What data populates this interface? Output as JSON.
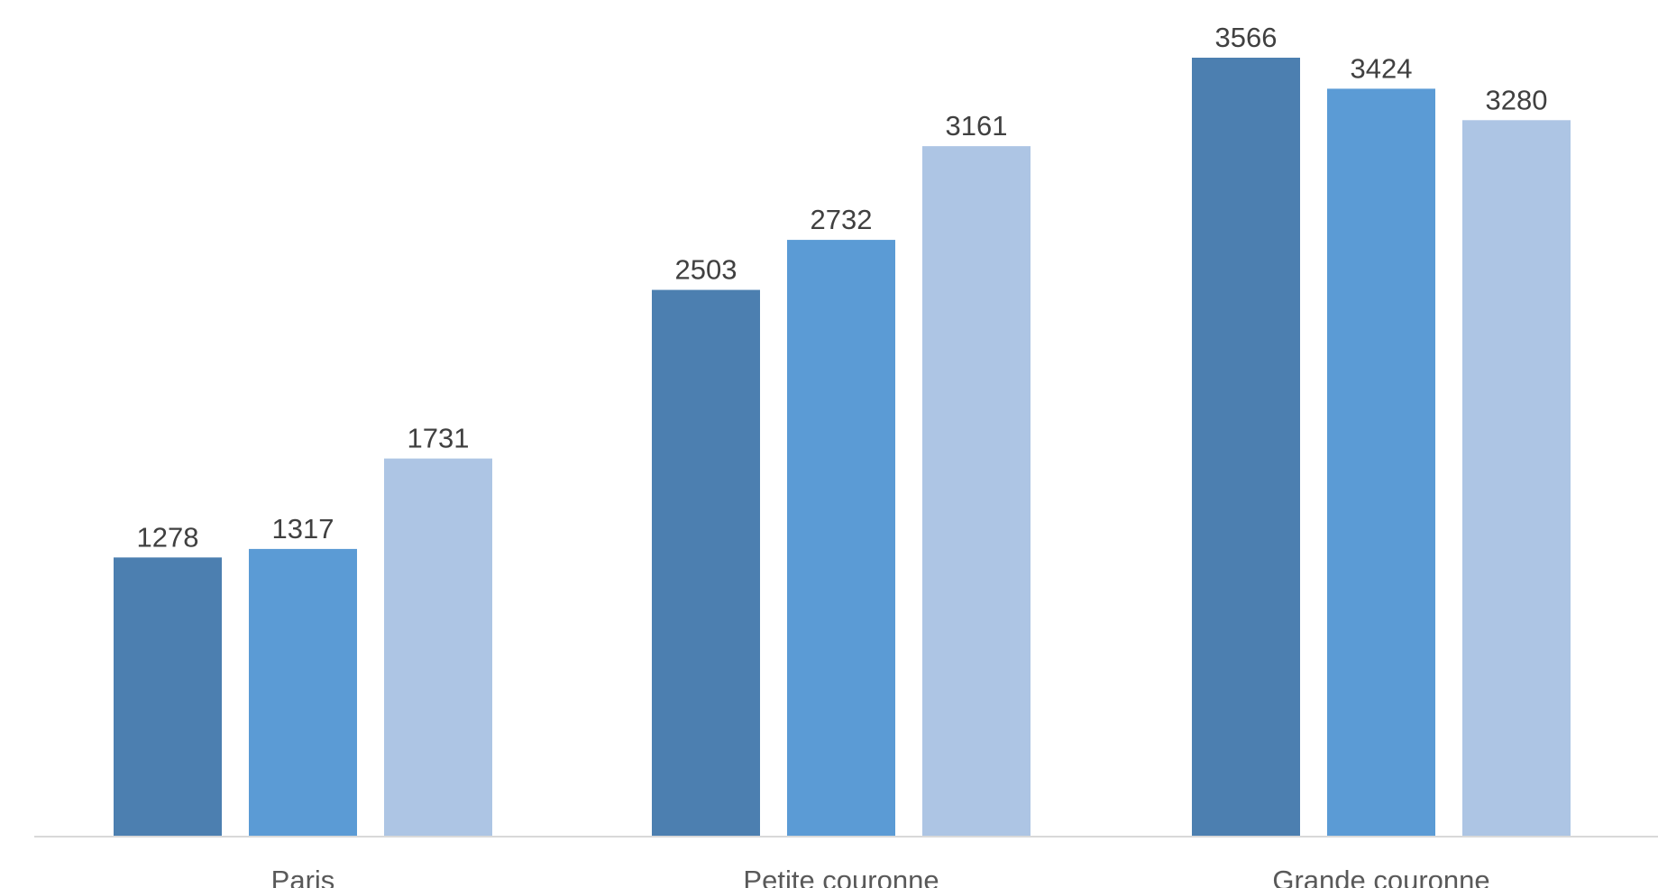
{
  "chart_data": {
    "type": "bar",
    "title": "",
    "xlabel": "",
    "ylabel": "",
    "categories": [
      "Paris",
      "Petite couronne",
      "Grande couronne"
    ],
    "series": [
      {
        "color": "#4C7FB0",
        "values": [
          1278,
          2503,
          3566
        ]
      },
      {
        "color": "#5B9BD5",
        "values": [
          1317,
          2732,
          3424
        ]
      },
      {
        "color": "#ADC5E4",
        "values": [
          1731,
          3161,
          3280
        ]
      }
    ],
    "ylim": [
      0,
      3566
    ],
    "grid": false,
    "legend": "none",
    "data_labels": true,
    "axis_color": "#D9D9D9"
  }
}
